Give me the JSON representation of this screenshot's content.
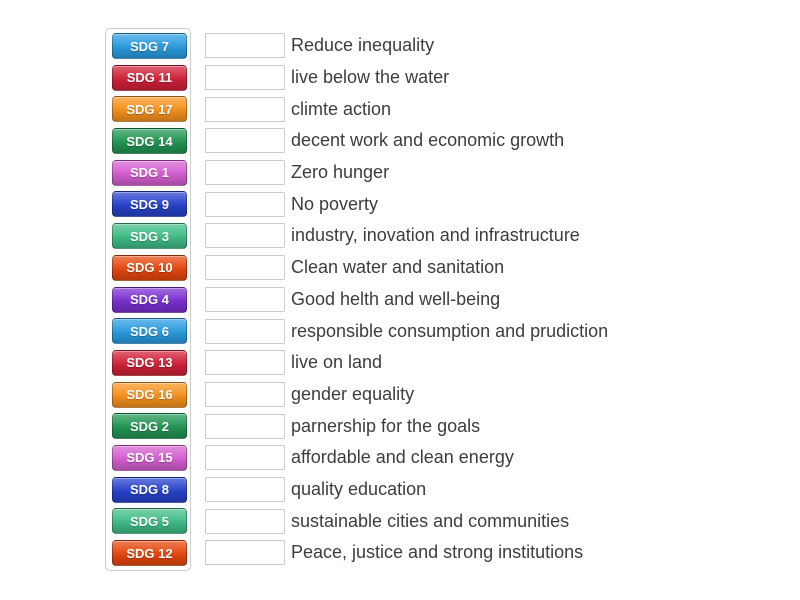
{
  "activity": {
    "kind": "match-up",
    "rows": [
      {
        "keyword": "SDG 7",
        "color": "blue",
        "answer": "Reduce inequality"
      },
      {
        "keyword": "SDG 11",
        "color": "crimson",
        "answer": "live below the water"
      },
      {
        "keyword": "SDG 17",
        "color": "orange",
        "answer": "climte action"
      },
      {
        "keyword": "SDG 14",
        "color": "green",
        "answer": "decent work and economic growth"
      },
      {
        "keyword": "SDG 1",
        "color": "orchid",
        "answer": "Zero hunger"
      },
      {
        "keyword": "SDG 9",
        "color": "royalblue",
        "answer": "No poverty"
      },
      {
        "keyword": "SDG 3",
        "color": "seagreen",
        "answer": "industry, inovation and infrastructure"
      },
      {
        "keyword": "SDG 10",
        "color": "orangered",
        "answer": "Clean water and sanitation"
      },
      {
        "keyword": "SDG 4",
        "color": "purple",
        "answer": "Good helth and well-being"
      },
      {
        "keyword": "SDG 6",
        "color": "blue",
        "answer": "responsible consumption and prudiction"
      },
      {
        "keyword": "SDG 13",
        "color": "crimson",
        "answer": "live on land"
      },
      {
        "keyword": "SDG 16",
        "color": "orange",
        "answer": "gender equality"
      },
      {
        "keyword": "SDG 2",
        "color": "green",
        "answer": "parnership for the goals"
      },
      {
        "keyword": "SDG 15",
        "color": "orchid",
        "answer": "affordable and clean energy"
      },
      {
        "keyword": "SDG 8",
        "color": "royalblue",
        "answer": "quality education"
      },
      {
        "keyword": "SDG 5",
        "color": "seagreen",
        "answer": "sustainable cities and communities"
      },
      {
        "keyword": "SDG 12",
        "color": "orangered",
        "answer": "Peace, justice and strong institutions"
      }
    ],
    "colors": {
      "blue": "#2a9ce0",
      "crimson": "#d02138",
      "orange": "#f6921e",
      "green": "#219653",
      "orchid": "#d45fd0",
      "royalblue": "#2742cb",
      "seagreen": "#40bd86",
      "orangered": "#e6470f",
      "purple": "#7b2fd1"
    },
    "text_color": "#3d3d3d",
    "slot_border_color": "#cccccc",
    "panel_border_color": "#cccccc",
    "background_color": "#ffffff"
  }
}
